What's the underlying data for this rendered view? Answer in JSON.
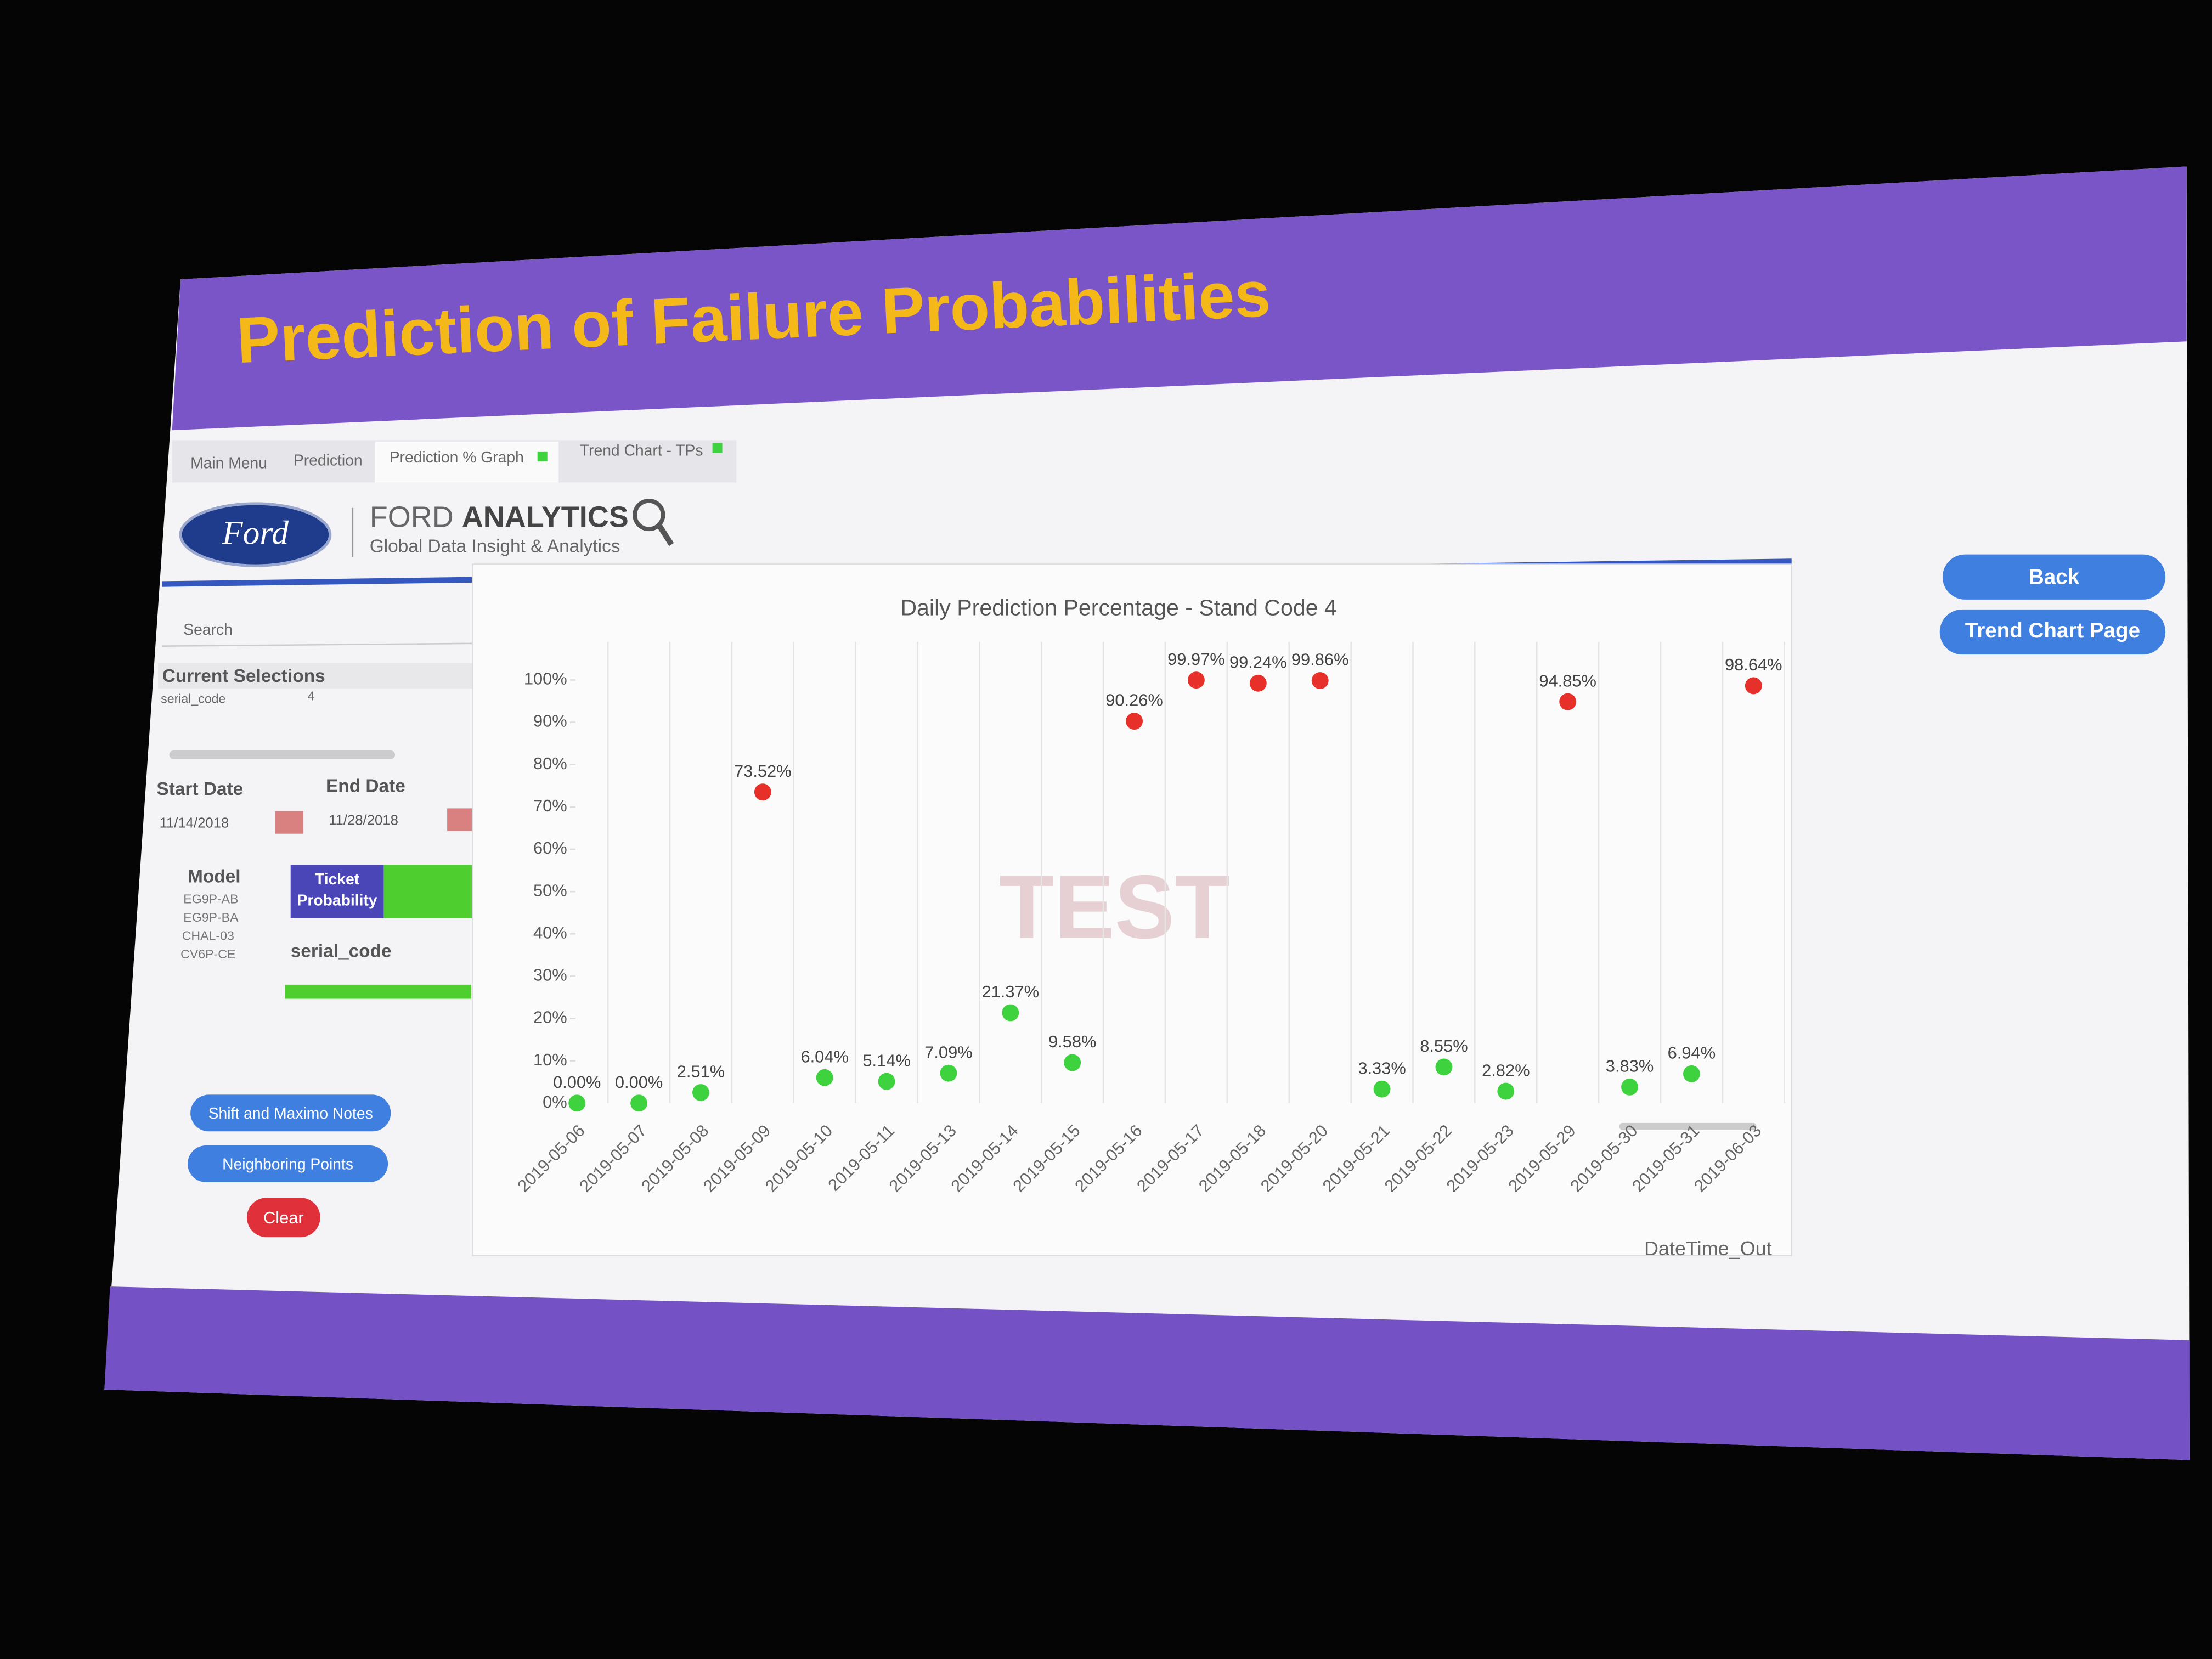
{
  "slide_title": "Prediction of Failure Probabilities",
  "tabs": [
    "Main Menu",
    "Prediction",
    "Prediction % Graph",
    "Trend Chart - TPs"
  ],
  "brand": {
    "logo": "Ford",
    "name": "FORD",
    "name_bold": "ANALYTICS",
    "tagline": "Global Data Insight & Analytics"
  },
  "sidebar": {
    "search": "Search",
    "current_selections": "Current Selections",
    "selection_field": "serial_code",
    "selection_value": "4",
    "start_date_label": "Start Date",
    "end_date_label": "End Date",
    "start_date": "11/14/2018",
    "end_date": "11/28/2018",
    "model_label": "Model",
    "models": [
      "EG9P-AB",
      "EG9P-BA",
      "CHAL-03",
      "CV6P-CE"
    ],
    "ticket_probability": [
      "Ticket",
      "Probability"
    ],
    "serial_code_search": "serial_code"
  },
  "buttons": {
    "notes": "Shift and Maximo Notes",
    "neighbors": "Neighboring Points",
    "clear": "Clear",
    "back": "Back",
    "trend": "Trend Chart Page"
  },
  "watermark": "TEST",
  "chart_data": {
    "type": "scatter",
    "title": "Daily Prediction Percentage - Stand Code  4",
    "x_label": "DateTime_Out",
    "categories": [
      "2019-05-06",
      "2019-05-07",
      "2019-05-08",
      "2019-05-09",
      "2019-05-10",
      "2019-05-11",
      "2019-05-13",
      "2019-05-14",
      "2019-05-15",
      "2019-05-16",
      "2019-05-17",
      "2019-05-18",
      "2019-05-20",
      "2019-05-21",
      "2019-05-22",
      "2019-05-23",
      "2019-05-29",
      "2019-05-30",
      "2019-05-31",
      "2019-06-03"
    ],
    "values": [
      0.0,
      0.0,
      2.51,
      73.52,
      6.04,
      5.14,
      7.09,
      21.37,
      9.58,
      90.26,
      99.97,
      99.24,
      99.86,
      3.33,
      8.55,
      2.82,
      94.85,
      3.83,
      6.94,
      98.64
    ],
    "value_labels": [
      "0.00%",
      "0.00%",
      "2.51%",
      "73.52%",
      "6.04%",
      "5.14%",
      "7.09%",
      "21.37%",
      "9.58%",
      "90.26%",
      "99.97%",
      "99.24%",
      "99.86%",
      "3.33%",
      "8.55%",
      "2.82%",
      "94.85%",
      "3.83%",
      "6.94%",
      "98.64%"
    ],
    "colors": [
      "#3fd23f",
      "#3fd23f",
      "#3fd23f",
      "#e8302a",
      "#3fd23f",
      "#3fd23f",
      "#3fd23f",
      "#3fd23f",
      "#3fd23f",
      "#e8302a",
      "#e8302a",
      "#e8302a",
      "#e8302a",
      "#3fd23f",
      "#3fd23f",
      "#3fd23f",
      "#e8302a",
      "#3fd23f",
      "#3fd23f",
      "#e8302a"
    ],
    "ylim": [
      0,
      105
    ],
    "yticks": [
      {
        "value": 0,
        "label": "0%"
      },
      {
        "value": 10,
        "label": "10%"
      },
      {
        "value": 20,
        "label": "20%"
      },
      {
        "value": 30,
        "label": "30%"
      },
      {
        "value": 40,
        "label": "40%"
      },
      {
        "value": 50,
        "label": "50%"
      },
      {
        "value": 60,
        "label": "60%"
      },
      {
        "value": 70,
        "label": "70%"
      },
      {
        "value": 80,
        "label": "80%"
      },
      {
        "value": 90,
        "label": "90%"
      },
      {
        "value": 100,
        "label": "100%"
      }
    ],
    "grid": true
  }
}
